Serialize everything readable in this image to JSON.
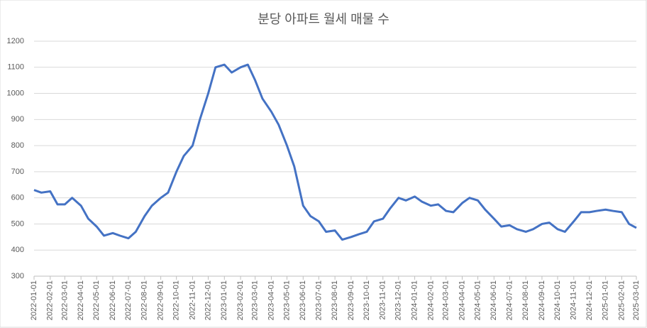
{
  "chart_data": {
    "type": "line",
    "title": "분당 아파트 월세 매물 수",
    "x": [
      "2022-01-01",
      "2022-01-15",
      "2022-02-01",
      "2022-02-15",
      "2022-03-01",
      "2022-03-15",
      "2022-04-01",
      "2022-04-15",
      "2022-05-01",
      "2022-05-15",
      "2022-06-01",
      "2022-06-15",
      "2022-07-01",
      "2022-07-15",
      "2022-08-01",
      "2022-08-15",
      "2022-09-01",
      "2022-09-15",
      "2022-10-01",
      "2022-10-15",
      "2022-11-01",
      "2022-11-15",
      "2022-12-01",
      "2022-12-15",
      "2023-01-01",
      "2023-01-15",
      "2023-02-01",
      "2023-02-15",
      "2023-03-01",
      "2023-03-15",
      "2023-04-01",
      "2023-04-15",
      "2023-05-01",
      "2023-05-15",
      "2023-06-01",
      "2023-06-15",
      "2023-07-01",
      "2023-07-15",
      "2023-08-01",
      "2023-08-15",
      "2023-09-01",
      "2023-09-15",
      "2023-10-01",
      "2023-10-15",
      "2023-11-01",
      "2023-11-15",
      "2023-12-01",
      "2023-12-15",
      "2024-01-01",
      "2024-01-15",
      "2024-02-01",
      "2024-02-15",
      "2024-03-01",
      "2024-03-15",
      "2024-04-01",
      "2024-04-15",
      "2024-05-01",
      "2024-05-15",
      "2024-06-01",
      "2024-06-15",
      "2024-07-01",
      "2024-07-15",
      "2024-08-01",
      "2024-08-15",
      "2024-09-01",
      "2024-09-15",
      "2024-10-01",
      "2024-10-15",
      "2024-11-01",
      "2024-11-15",
      "2024-12-01",
      "2024-12-15",
      "2025-01-01",
      "2025-01-15",
      "2025-02-01",
      "2025-02-15",
      "2025-03-01"
    ],
    "series": [
      {
        "name": "매물 수",
        "color": "#4472c4",
        "values": [
          630,
          620,
          625,
          575,
          575,
          600,
          570,
          520,
          490,
          455,
          465,
          455,
          445,
          470,
          530,
          570,
          600,
          620,
          700,
          760,
          800,
          900,
          1000,
          1100,
          1110,
          1080,
          1100,
          1110,
          1050,
          980,
          930,
          880,
          800,
          720,
          570,
          530,
          510,
          470,
          475,
          440,
          450,
          460,
          470,
          510,
          520,
          560,
          600,
          590,
          605,
          585,
          570,
          575,
          550,
          545,
          580,
          600,
          590,
          555,
          520,
          490,
          495,
          480,
          470,
          480,
          500,
          505,
          480,
          470,
          510,
          545,
          545,
          550,
          555,
          550,
          545,
          500,
          485
        ]
      }
    ],
    "xlim": [
      "2022-01-01",
      "2025-03-01"
    ],
    "xticks": [
      "2022-01-01",
      "2022-02-01",
      "2022-03-01",
      "2022-04-01",
      "2022-05-01",
      "2022-06-01",
      "2022-07-01",
      "2022-08-01",
      "2022-09-01",
      "2022-10-01",
      "2022-11-01",
      "2022-12-01",
      "2023-01-01",
      "2023-02-01",
      "2023-03-01",
      "2023-04-01",
      "2023-05-01",
      "2023-06-01",
      "2023-07-01",
      "2023-08-01",
      "2023-09-01",
      "2023-10-01",
      "2023-11-01",
      "2023-12-01",
      "2024-01-01",
      "2024-02-01",
      "2024-03-01",
      "2024-04-01",
      "2024-05-01",
      "2024-06-01",
      "2024-07-01",
      "2024-08-01",
      "2024-09-01",
      "2024-10-01",
      "2024-11-01",
      "2024-12-01",
      "2025-01-01",
      "2025-02-01",
      "2025-03-01"
    ],
    "ylim": [
      300,
      1200
    ],
    "yticks": [
      300,
      400,
      500,
      600,
      700,
      800,
      900,
      1000,
      1100,
      1200
    ],
    "grid": true
  }
}
